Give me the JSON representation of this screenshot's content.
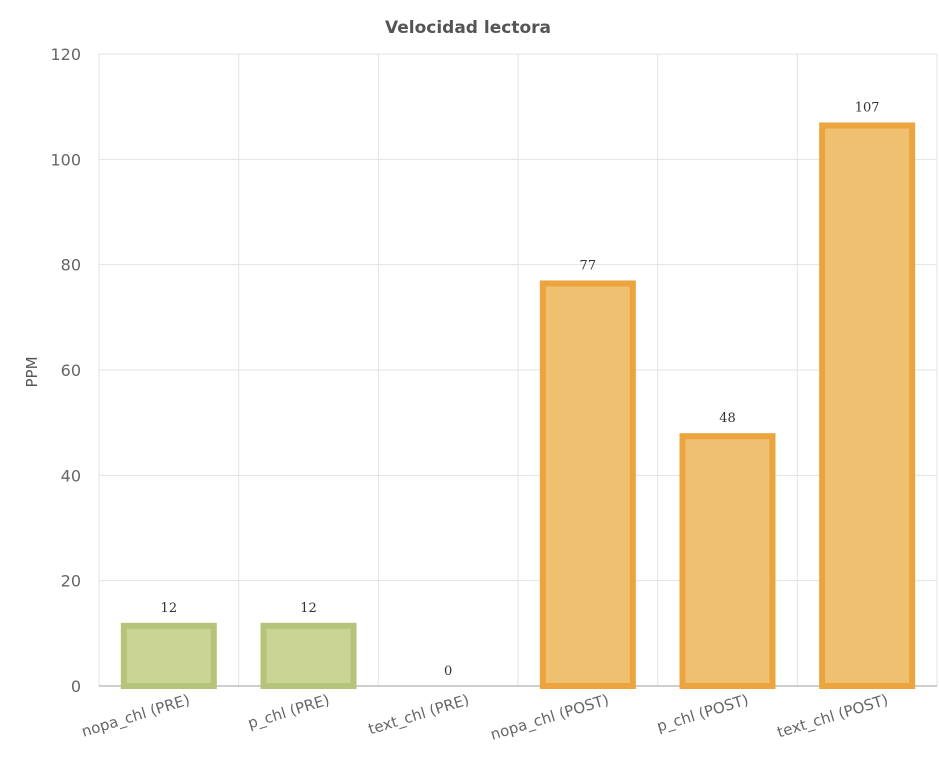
{
  "chart_data": {
    "type": "bar",
    "title": "Velocidad lectora",
    "xlabel": "",
    "ylabel": "PPM",
    "ylim": [
      0,
      120
    ],
    "yticks": [
      0,
      20,
      40,
      60,
      80,
      100,
      120
    ],
    "grid": true,
    "legend": "none",
    "categories": [
      "nopa_chl (PRE)",
      "p_chl (PRE)",
      "text_chl (PRE)",
      "nopa_chl (POST)",
      "p_chl (POST)",
      "text_chl (POST)"
    ],
    "values": [
      12,
      12,
      0,
      77,
      48,
      107
    ],
    "colors": {
      "pre_fill": "#c9d495",
      "pre_stroke": "#b5c47a",
      "post_fill": "#f0c071",
      "post_stroke": "#eba43e"
    }
  }
}
